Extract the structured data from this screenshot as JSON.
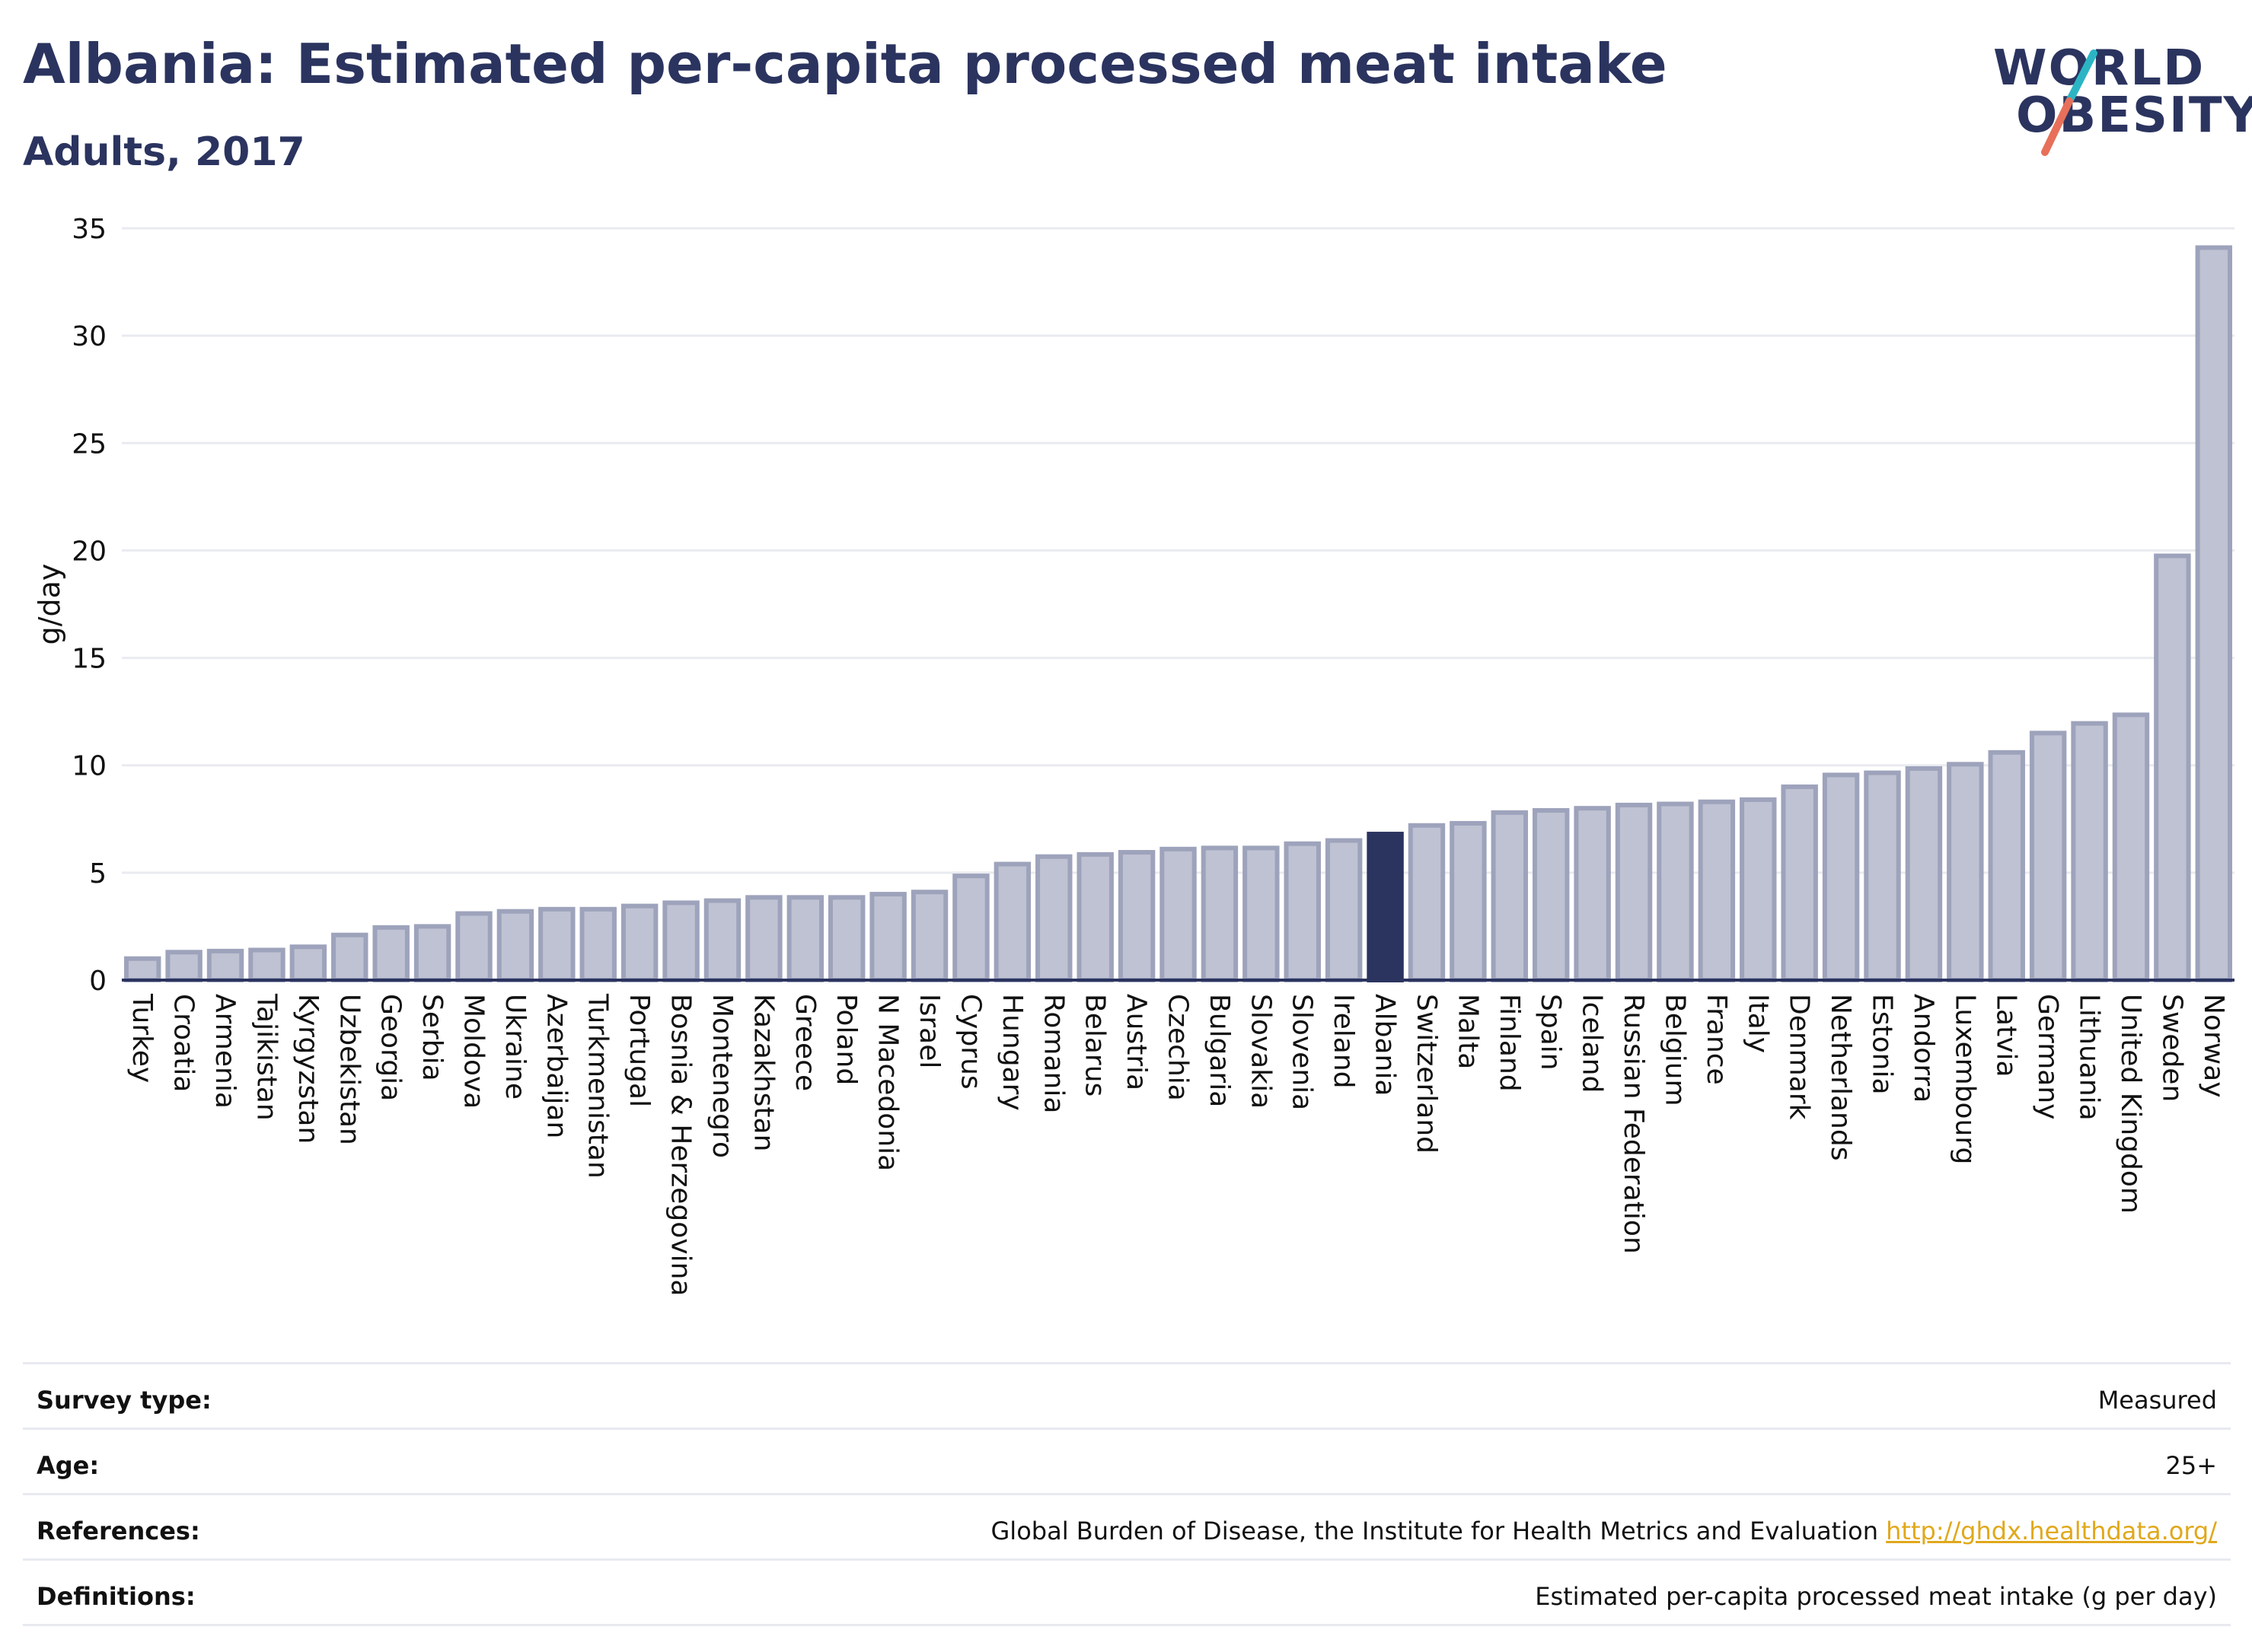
{
  "header": {
    "title": "Albania: Estimated per-capita processed meat intake",
    "subtitle": "Adults, 2017"
  },
  "logo": {
    "line1": "WORLD",
    "line2": "OBESITY",
    "colors": {
      "text": "#2b345f",
      "slash_top": "#2bb5c4",
      "slash_bottom": "#e8705a"
    }
  },
  "colors": {
    "bar": "#bfc2d2",
    "bar_border": "#9ea3bc",
    "highlight": "#2b345f",
    "axis": "#2b345f",
    "grid": "#e9ebf0",
    "link": "#e0a81c"
  },
  "chart_data": {
    "type": "bar",
    "title": "Albania: Estimated per-capita processed meat intake",
    "subtitle": "Adults, 2017",
    "ylabel": "g/day",
    "xlabel": "",
    "ylim": [
      0,
      35
    ],
    "yticks": [
      0,
      5,
      10,
      15,
      20,
      25,
      30,
      35
    ],
    "grid": true,
    "highlight": "Albania",
    "categories": [
      "Turkey",
      "Croatia",
      "Armenia",
      "Tajikistan",
      "Kyrgyzstan",
      "Uzbekistan",
      "Georgia",
      "Serbia",
      "Moldova",
      "Ukraine",
      "Azerbaijan",
      "Turkmenistan",
      "Portugal",
      "Bosnia & Herzegovina",
      "Montenegro",
      "Kazakhstan",
      "Greece",
      "Poland",
      "N Macedonia",
      "Israel",
      "Cyprus",
      "Hungary",
      "Romania",
      "Belarus",
      "Austria",
      "Czechia",
      "Bulgaria",
      "Slovakia",
      "Slovenia",
      "Ireland",
      "Albania",
      "Switzerland",
      "Malta",
      "Finland",
      "Spain",
      "Iceland",
      "Russian Federation",
      "Belgium",
      "France",
      "Italy",
      "Denmark",
      "Netherlands",
      "Estonia",
      "Andorra",
      "Luxembourg",
      "Latvia",
      "Germany",
      "Lithuania",
      "United Kingdom",
      "Sweden",
      "Norway"
    ],
    "values": [
      1.0,
      1.3,
      1.35,
      1.4,
      1.55,
      2.1,
      2.45,
      2.5,
      3.1,
      3.2,
      3.3,
      3.3,
      3.45,
      3.6,
      3.7,
      3.85,
      3.85,
      3.85,
      4.0,
      4.1,
      4.85,
      5.4,
      5.75,
      5.85,
      5.95,
      6.1,
      6.15,
      6.15,
      6.35,
      6.5,
      6.8,
      7.2,
      7.3,
      7.8,
      7.9,
      8.0,
      8.15,
      8.2,
      8.3,
      8.4,
      9.0,
      9.55,
      9.65,
      9.85,
      10.05,
      10.6,
      11.5,
      11.95,
      12.35,
      19.75,
      34.1
    ]
  },
  "info": {
    "rows": [
      {
        "label": "Survey type:",
        "value": "Measured"
      },
      {
        "label": "Age:",
        "value": "25+"
      },
      {
        "label": "References:",
        "value": "Global Burden of Disease, the Institute for Health Metrics and Evaluation",
        "link": "http://ghdx.healthdata.org/"
      },
      {
        "label": "Definitions:",
        "value": "Estimated per-capita processed meat intake (g per day)"
      }
    ]
  }
}
